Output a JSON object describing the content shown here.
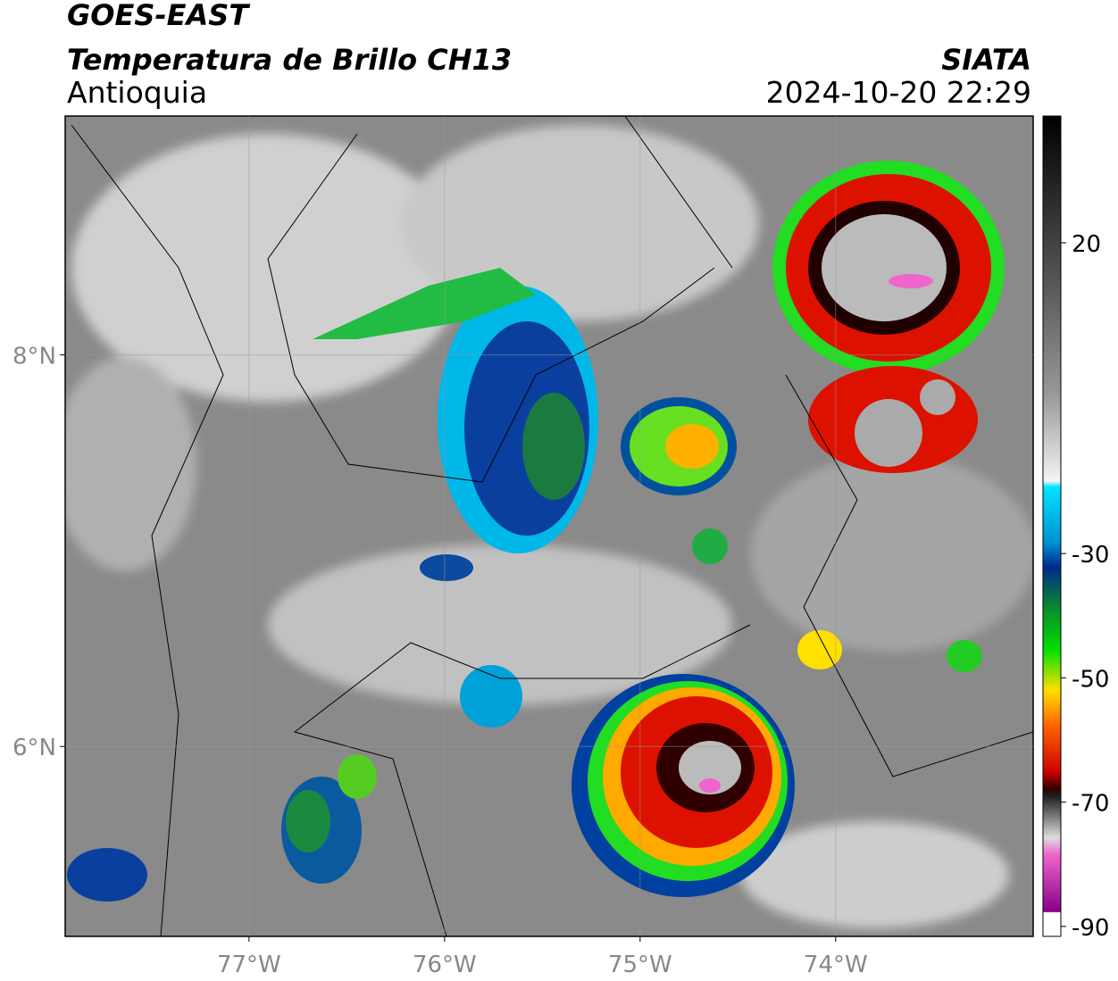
{
  "header": {
    "satellite": "GOES-EAST",
    "product": "Temperatura de Brillo CH13",
    "region": "Antioquia",
    "source": "SIATA",
    "datetime": "2024-10-20 22:29"
  },
  "map": {
    "xlim": [
      -77.94,
      -72.99
    ],
    "ylim": [
      5.03,
      9.22
    ],
    "xticks": [
      {
        "value": -77,
        "label": "77°W"
      },
      {
        "value": -76,
        "label": "76°W"
      },
      {
        "value": -75,
        "label": "75°W"
      },
      {
        "value": -74,
        "label": "74°W"
      }
    ],
    "yticks": [
      {
        "value": 8,
        "label": "8°N"
      },
      {
        "value": 6,
        "label": "6°N"
      }
    ]
  },
  "colorbar": {
    "lim": [
      40.4,
      -91.6
    ],
    "ticks": [
      20,
      -30,
      -50,
      -70,
      -90
    ]
  }
}
